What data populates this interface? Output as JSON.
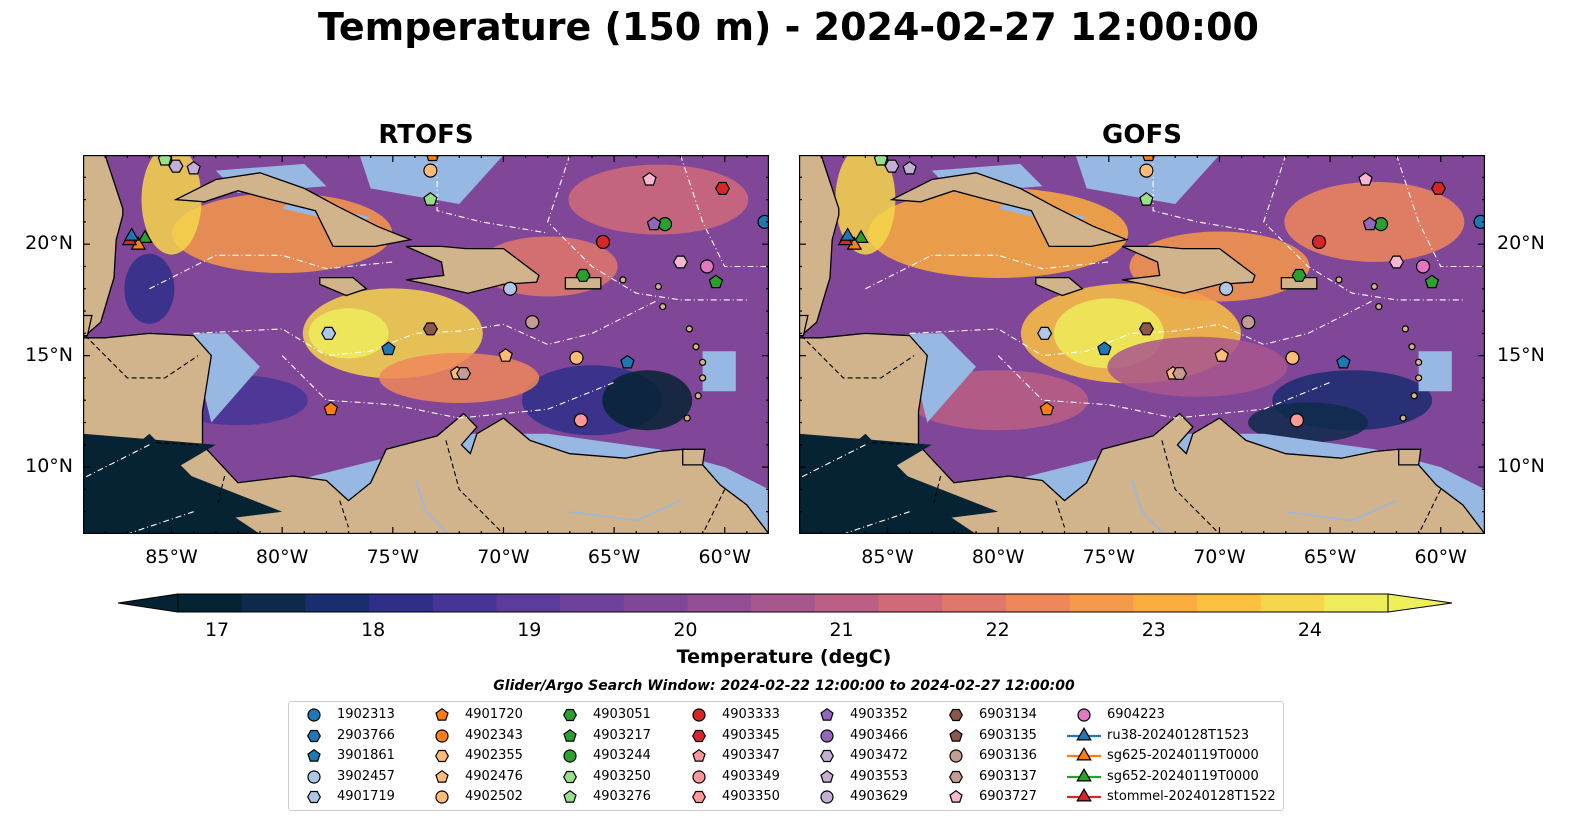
{
  "title": "Temperature (150 m) - 2024-02-27 12:00:00",
  "panels": [
    {
      "title": "RTOFS"
    },
    {
      "title": "GOFS"
    }
  ],
  "axes": {
    "lon_ticks": [
      "85°W",
      "80°W",
      "75°W",
      "70°W",
      "65°W",
      "60°W"
    ],
    "lat_ticks": [
      "20°N",
      "15°N",
      "10°N"
    ],
    "lon_range": [
      -89,
      -58
    ],
    "lat_range": [
      7,
      24
    ]
  },
  "colorbar": {
    "label": "Temperature (degC)",
    "ticks": [
      "17",
      "18",
      "19",
      "20",
      "21",
      "22",
      "23",
      "24"
    ],
    "vmin": 16.75,
    "vmax": 24.5,
    "colors": [
      "#062334",
      "#0d2a4b",
      "#1a2d6e",
      "#2f2f8a",
      "#473596",
      "#5c3c9a",
      "#6e429a",
      "#804798",
      "#944e94",
      "#a8568e",
      "#bc5f84",
      "#d06a79",
      "#e0776a",
      "#ee875a",
      "#f7994a",
      "#fcad3d",
      "#fcc13f",
      "#f6d64a",
      "#eeec5a"
    ],
    "under_color": "#062334",
    "over_color": "#eef05a"
  },
  "legend": {
    "title": "Glider/Argo Search Window: 2024-02-22 12:00:00 to 2024-02-27 12:00:00",
    "items": [
      {
        "label": "1902313",
        "marker": "circle",
        "color": "#1f77b4"
      },
      {
        "label": "2903766",
        "marker": "hexagon",
        "color": "#1f77b4"
      },
      {
        "label": "3901861",
        "marker": "pentagon",
        "color": "#1f77b4"
      },
      {
        "label": "3902457",
        "marker": "circle",
        "color": "#aec7e8"
      },
      {
        "label": "4901719",
        "marker": "hexagon",
        "color": "#aec7e8"
      },
      {
        "label": "4901720",
        "marker": "pentagon",
        "color": "#ff7f0e"
      },
      {
        "label": "4902343",
        "marker": "circle",
        "color": "#ff7f0e"
      },
      {
        "label": "4902355",
        "marker": "hexagon",
        "color": "#ffbb78"
      },
      {
        "label": "4902476",
        "marker": "pentagon",
        "color": "#ffbb78"
      },
      {
        "label": "4902502",
        "marker": "circle",
        "color": "#ffbb78"
      },
      {
        "label": "4903051",
        "marker": "hexagon",
        "color": "#2ca02c"
      },
      {
        "label": "4903217",
        "marker": "pentagon",
        "color": "#2ca02c"
      },
      {
        "label": "4903244",
        "marker": "circle",
        "color": "#2ca02c"
      },
      {
        "label": "4903250",
        "marker": "hexagon",
        "color": "#98df8a"
      },
      {
        "label": "4903276",
        "marker": "pentagon",
        "color": "#98df8a"
      },
      {
        "label": "4903333",
        "marker": "circle",
        "color": "#d62728"
      },
      {
        "label": "4903345",
        "marker": "hexagon",
        "color": "#d62728"
      },
      {
        "label": "4903347",
        "marker": "pentagon",
        "color": "#ff9896"
      },
      {
        "label": "4903349",
        "marker": "circle",
        "color": "#ff9896"
      },
      {
        "label": "4903350",
        "marker": "hexagon",
        "color": "#ff9896"
      },
      {
        "label": "4903352",
        "marker": "pentagon",
        "color": "#9467bd"
      },
      {
        "label": "4903466",
        "marker": "circle",
        "color": "#9467bd"
      },
      {
        "label": "4903472",
        "marker": "hexagon",
        "color": "#c5b0d5"
      },
      {
        "label": "4903553",
        "marker": "pentagon",
        "color": "#c5b0d5"
      },
      {
        "label": "4903629",
        "marker": "circle",
        "color": "#c5b0d5"
      },
      {
        "label": "6903134",
        "marker": "hexagon",
        "color": "#8c564b"
      },
      {
        "label": "6903135",
        "marker": "pentagon",
        "color": "#8c564b"
      },
      {
        "label": "6903136",
        "marker": "circle",
        "color": "#c49c94"
      },
      {
        "label": "6903137",
        "marker": "hexagon",
        "color": "#c49c94"
      },
      {
        "label": "6903727",
        "marker": "pentagon",
        "color": "#f7b6d2"
      },
      {
        "label": "6904223",
        "marker": "circle",
        "color": "#e377c2"
      },
      {
        "label": "ru38-20240128T1523",
        "marker": "triangle-line",
        "color": "#1f77b4"
      },
      {
        "label": "sg625-20240119T0000",
        "marker": "triangle-line",
        "color": "#ff7f0e"
      },
      {
        "label": "sg652-20240119T0000",
        "marker": "triangle-line",
        "color": "#2ca02c"
      },
      {
        "label": "stommel-20240128T1522",
        "marker": "triangle-line",
        "color": "#d62728"
      }
    ]
  },
  "map_colors": {
    "land": "#d2b48c",
    "shallow": "#97b8e2",
    "coast": "#000000",
    "eez": "#ffffff"
  },
  "observations": [
    {
      "lon": -58.2,
      "lat": 21.0,
      "marker": "circle",
      "color": "#1f77b4"
    },
    {
      "lon": -75.2,
      "lat": 15.3,
      "marker": "pentagon",
      "color": "#1f77b4"
    },
    {
      "lon": -69.7,
      "lat": 18.0,
      "marker": "circle",
      "color": "#aec7e8"
    },
    {
      "lon": -77.9,
      "lat": 16.0,
      "marker": "hexagon",
      "color": "#aec7e8"
    },
    {
      "lon": -77.8,
      "lat": 12.6,
      "marker": "pentagon",
      "color": "#ff7f0e"
    },
    {
      "lon": -73.2,
      "lat": 24.0,
      "marker": "pentagon",
      "color": "#ff7f0e"
    },
    {
      "lon": -73.3,
      "lat": 23.3,
      "marker": "circle",
      "color": "#ffbb78"
    },
    {
      "lon": -66.5,
      "lat": 12.1,
      "marker": "circle",
      "color": "#ff9896"
    },
    {
      "lon": -66.7,
      "lat": 14.9,
      "marker": "circle",
      "color": "#ffbb78"
    },
    {
      "lon": -69.9,
      "lat": 15.0,
      "marker": "pentagon",
      "color": "#ffbb78"
    },
    {
      "lon": -72.1,
      "lat": 14.2,
      "marker": "pentagon",
      "color": "#ffbb78"
    },
    {
      "lon": -71.8,
      "lat": 14.2,
      "marker": "hexagon",
      "color": "#c49c94"
    },
    {
      "lon": -73.3,
      "lat": 16.2,
      "marker": "hexagon",
      "color": "#8c564b"
    },
    {
      "lon": -68.7,
      "lat": 16.5,
      "marker": "circle",
      "color": "#c49c94"
    },
    {
      "lon": -66.4,
      "lat": 18.6,
      "marker": "hexagon",
      "color": "#2ca02c"
    },
    {
      "lon": -60.4,
      "lat": 18.3,
      "marker": "pentagon",
      "color": "#2ca02c"
    },
    {
      "lon": -62.7,
      "lat": 20.9,
      "marker": "circle",
      "color": "#2ca02c"
    },
    {
      "lon": -73.3,
      "lat": 22.0,
      "marker": "pentagon",
      "color": "#98df8a"
    },
    {
      "lon": -85.3,
      "lat": 23.8,
      "marker": "pentagon",
      "color": "#98df8a"
    },
    {
      "lon": -65.5,
      "lat": 20.1,
      "marker": "circle",
      "color": "#d62728"
    },
    {
      "lon": -60.1,
      "lat": 22.5,
      "marker": "hexagon",
      "color": "#d62728"
    },
    {
      "lon": -63.2,
      "lat": 20.9,
      "marker": "pentagon",
      "color": "#9467bd"
    },
    {
      "lon": -64.4,
      "lat": 14.7,
      "marker": "pentagon",
      "color": "#1f77b4"
    },
    {
      "lon": -62.0,
      "lat": 19.2,
      "marker": "hexagon",
      "color": "#f7b6d2"
    },
    {
      "lon": -63.4,
      "lat": 22.9,
      "marker": "pentagon",
      "color": "#f7b6d2"
    },
    {
      "lon": -60.8,
      "lat": 19.0,
      "marker": "circle",
      "color": "#e377c2"
    },
    {
      "lon": -84.0,
      "lat": 23.4,
      "marker": "pentagon",
      "color": "#c5b0d5"
    },
    {
      "lon": -84.8,
      "lat": 23.5,
      "marker": "hexagon",
      "color": "#c5b0d5"
    },
    {
      "lon": -86.2,
      "lat": 20.3,
      "marker": "triangle",
      "color": "#2ca02c"
    },
    {
      "lon": -86.5,
      "lat": 20.0,
      "marker": "triangle",
      "color": "#ff7f0e"
    },
    {
      "lon": -86.9,
      "lat": 20.2,
      "marker": "triangle",
      "color": "#d62728"
    },
    {
      "lon": -86.8,
      "lat": 20.4,
      "marker": "triangle",
      "color": "#1f77b4"
    }
  ]
}
